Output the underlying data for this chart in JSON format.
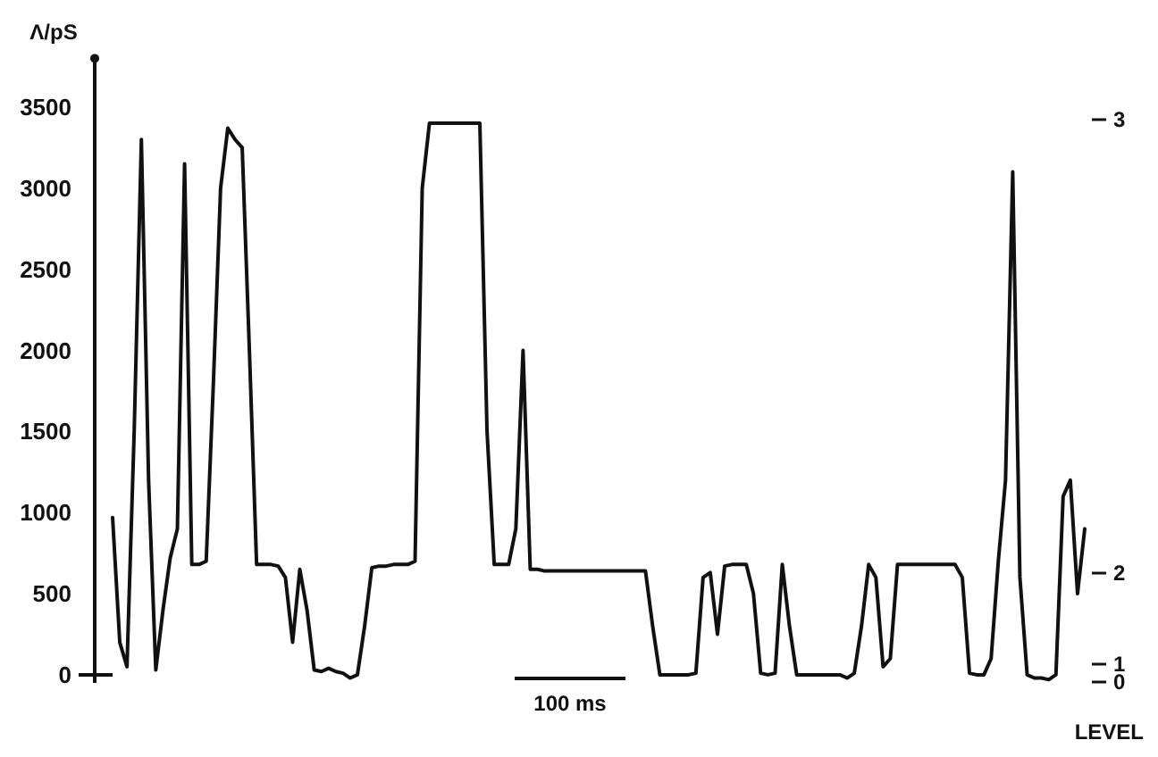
{
  "chart_data": {
    "type": "line",
    "ylabel": "Λ/pS",
    "y2label": "LEVEL",
    "categories": [
      null,
      null,
      null,
      null,
      null,
      null,
      null,
      null,
      null,
      null,
      null,
      null,
      null,
      null,
      null,
      null,
      null,
      null,
      null,
      null,
      null,
      null,
      null,
      null,
      null,
      null,
      null,
      null,
      null,
      null,
      null,
      null,
      null,
      null,
      null,
      null,
      null,
      null,
      null,
      null,
      null,
      null,
      null,
      null,
      null,
      null,
      null,
      null,
      null,
      null,
      null,
      null,
      null,
      null,
      null,
      null,
      null,
      null,
      null,
      null,
      null,
      null,
      null,
      null,
      null,
      null,
      null,
      null,
      null,
      null,
      null,
      null,
      null,
      null,
      null,
      null,
      null,
      null,
      null,
      null,
      null,
      null,
      null,
      null,
      null,
      null,
      null,
      null,
      null,
      null,
      null,
      null,
      null,
      null,
      null,
      null,
      null,
      null,
      null,
      null,
      null,
      null,
      null,
      null,
      null,
      null,
      null,
      null,
      null,
      null,
      null,
      null,
      null,
      null,
      null,
      null,
      null,
      null,
      null,
      null,
      null,
      null,
      null,
      null,
      null,
      null,
      null,
      null,
      null,
      null,
      null,
      null,
      null,
      null,
      null,
      null
    ],
    "series": [
      {
        "color": "#111111",
        "values": [
          970,
          200,
          50,
          1500,
          3300,
          1200,
          30,
          400,
          720,
          900,
          3150,
          680,
          680,
          700,
          1800,
          3000,
          3370,
          3300,
          3250,
          2000,
          680,
          680,
          680,
          670,
          600,
          200,
          650,
          400,
          30,
          20,
          40,
          20,
          10,
          -20,
          0,
          300,
          660,
          670,
          670,
          680,
          680,
          680,
          700,
          3000,
          3400,
          3400,
          3400,
          3400,
          3400,
          3400,
          3400,
          3400,
          1500,
          680,
          680,
          680,
          900,
          2000,
          650,
          650,
          640,
          640,
          640,
          640,
          640,
          640,
          640,
          640,
          640,
          640,
          640,
          640,
          640,
          640,
          640,
          300,
          0,
          0,
          0,
          0,
          0,
          10,
          600,
          630,
          250,
          670,
          680,
          680,
          680,
          500,
          10,
          0,
          10,
          680,
          300,
          0,
          0,
          0,
          0,
          0,
          0,
          0,
          -20,
          10,
          300,
          680,
          600,
          50,
          100,
          680,
          680,
          680,
          680,
          680,
          680,
          680,
          680,
          680,
          600,
          10,
          0,
          0,
          100,
          700,
          1200,
          3100,
          600,
          0,
          -20,
          -20,
          -30,
          0,
          1100,
          1200,
          500,
          900
        ]
      }
    ],
    "ylim": [
      -50,
      3800
    ],
    "yticks": [
      0,
      500,
      1000,
      1500,
      2000,
      2500,
      3000,
      3500
    ],
    "annotations": [
      "100 ms",
      "3",
      "2",
      "1",
      "0"
    ],
    "grid": false,
    "line_style": "solid"
  }
}
